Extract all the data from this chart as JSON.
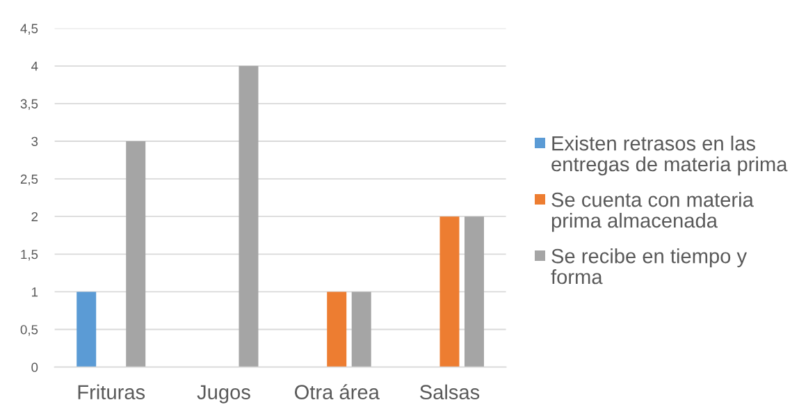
{
  "chart_data": {
    "type": "bar",
    "categories": [
      "Frituras",
      "Jugos",
      "Otra área",
      "Salsas"
    ],
    "series": [
      {
        "name": "Existen retrasos en las entregas de materia prima",
        "color": "#5b9bd5",
        "values": [
          1,
          null,
          null,
          null
        ]
      },
      {
        "name": "Se cuenta con materia prima almacenada",
        "color": "#ed7d31",
        "values": [
          null,
          null,
          1,
          2
        ]
      },
      {
        "name": "Se recibe en tiempo y forma",
        "color": "#a5a5a5",
        "values": [
          3,
          4,
          1,
          2
        ]
      }
    ],
    "ylim": [
      0,
      4.5
    ],
    "yticks": [
      0,
      {
        "value": 0.5,
        "label": "0,5"
      },
      1,
      {
        "value": 1.5,
        "label": "1,5"
      },
      2,
      {
        "value": 2.5,
        "label": "2,5"
      },
      3,
      {
        "value": 3.5,
        "label": "3,5"
      },
      4,
      {
        "value": 4.5,
        "label": "4,5"
      }
    ],
    "grid": "y",
    "legend": "right"
  }
}
